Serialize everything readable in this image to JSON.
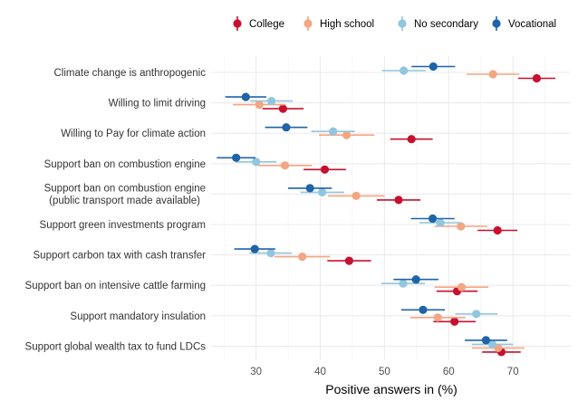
{
  "chart_data": {
    "type": "scatter",
    "subtype": "dot-with-error-bars",
    "xlabel": "Positive answers in (%)",
    "ylabel": "",
    "xlim": [
      23,
      79
    ],
    "xticks": [
      30,
      40,
      50,
      60,
      70
    ],
    "grid": true,
    "legend_position": "top",
    "categories": [
      [
        "Climate change is anthropogenic"
      ],
      [
        "Willing to limit driving"
      ],
      [
        "Willing to Pay for climate action"
      ],
      [
        "Support ban on combustion engine"
      ],
      [
        "Support ban on combustion engine",
        "(public transport made available)"
      ],
      [
        "Support green investments program"
      ],
      [
        "Support carbon tax with cash transfer"
      ],
      [
        "Support ban on intensive cattle farming"
      ],
      [
        "Support mandatory insulation"
      ],
      [
        "Support global wealth tax to fund LDCs"
      ]
    ],
    "series": [
      {
        "name": "College",
        "color": "#c8102e",
        "values": [
          73.7,
          34.2,
          54.2,
          40.7,
          52.2,
          67.6,
          44.5,
          61.3,
          60.9,
          68.2
        ],
        "errors": [
          2.9,
          3.2,
          3.3,
          3.3,
          3.4,
          3.1,
          3.4,
          3.2,
          3.3,
          3.0
        ]
      },
      {
        "name": "High school",
        "color": "#f4a582",
        "values": [
          66.9,
          30.5,
          44.1,
          34.5,
          45.6,
          61.9,
          37.2,
          62.0,
          58.3,
          67.7
        ],
        "errors": [
          4.1,
          4.1,
          4.3,
          4.2,
          4.4,
          4.1,
          4.3,
          4.2,
          4.3,
          4.1
        ]
      },
      {
        "name": "No secondary",
        "color": "#92c5de",
        "values": [
          53.0,
          32.4,
          42.0,
          30.0,
          40.3,
          58.7,
          32.3,
          52.9,
          64.3,
          66.8
        ],
        "errors": [
          3.4,
          3.3,
          3.4,
          3.2,
          3.4,
          3.3,
          3.3,
          3.4,
          3.3,
          3.2
        ]
      },
      {
        "name": "Vocational",
        "color": "#1f63a8",
        "values": [
          57.6,
          28.4,
          34.7,
          26.9,
          38.4,
          57.5,
          29.8,
          54.9,
          56.0,
          65.8
        ],
        "errors": [
          3.4,
          3.2,
          3.3,
          3.0,
          3.4,
          3.4,
          3.2,
          3.5,
          3.4,
          3.3
        ]
      }
    ]
  }
}
